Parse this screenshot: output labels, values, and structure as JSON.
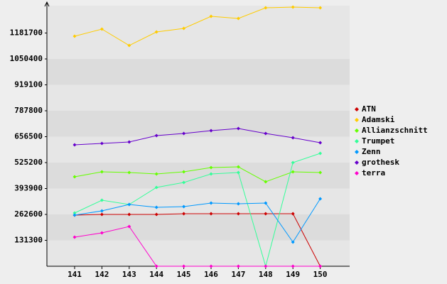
{
  "chart_data": {
    "type": "line",
    "categories": [
      "141",
      "142",
      "143",
      "144",
      "145",
      "146",
      "147",
      "148",
      "149",
      "150"
    ],
    "ylim": [
      0,
      1313000
    ],
    "yticks": [
      131300,
      262600,
      393900,
      525200,
      656500,
      787800,
      919100,
      1050400,
      1181700
    ],
    "grid": true,
    "legend": "right",
    "series": [
      {
        "name": "ATN",
        "color": "#cc0000",
        "values": [
          259000,
          262600,
          262600,
          262600,
          266000,
          266000,
          266000,
          266000,
          266000,
          0
        ]
      },
      {
        "name": "Adamski",
        "color": "#ffcc00",
        "values": [
          1165500,
          1201500,
          1118700,
          1187100,
          1205100,
          1266200,
          1255400,
          1309400,
          1313000,
          1309400
        ]
      },
      {
        "name": "Allianzschnitt",
        "color": "#66ff00",
        "values": [
          453200,
          478400,
          474800,
          467600,
          478400,
          500000,
          503600,
          428100,
          478400,
          474800
        ]
      },
      {
        "name": "Trumpet",
        "color": "#33ff99",
        "values": [
          269800,
          334500,
          313000,
          399300,
          424500,
          467600,
          474800,
          0,
          525200,
          572000
        ]
      },
      {
        "name": "Zenn",
        "color": "#0099ff",
        "values": [
          259000,
          280600,
          313000,
          298600,
          302200,
          320200,
          316600,
          320200,
          122300,
          341700
        ]
      },
      {
        "name": "grothesk",
        "color": "#6600cc",
        "values": [
          615100,
          622300,
          629500,
          661900,
          672700,
          687100,
          697900,
          672700,
          651100,
          625900
        ]
      },
      {
        "name": "terra",
        "color": "#ff00cc",
        "values": [
          147500,
          169100,
          201400,
          0,
          0,
          0,
          0,
          0,
          0,
          0
        ]
      }
    ]
  }
}
